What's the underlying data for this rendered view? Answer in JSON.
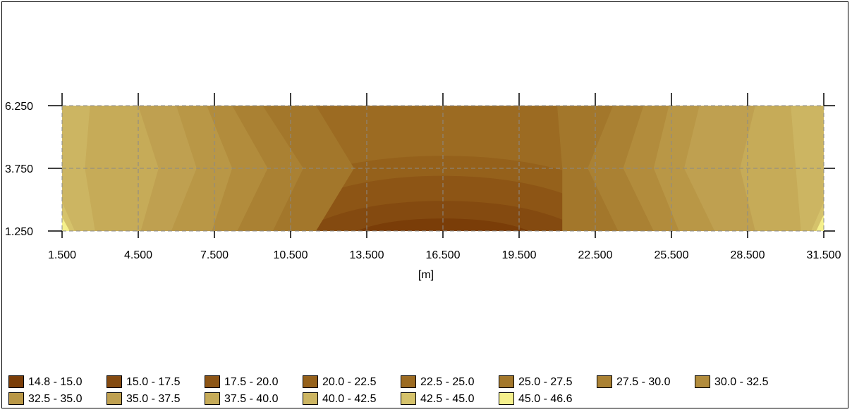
{
  "chart_data": {
    "type": "heatmap",
    "title": "",
    "xlabel": "[m]",
    "ylabel": "",
    "xlim": [
      1.5,
      31.5
    ],
    "ylim": [
      1.25,
      6.25
    ],
    "x_ticks": [
      "1.500",
      "4.500",
      "7.500",
      "10.500",
      "13.500",
      "16.500",
      "19.500",
      "22.500",
      "25.500",
      "28.500",
      "31.500"
    ],
    "y_ticks": [
      "6.250",
      "3.750",
      "1.250"
    ],
    "grid": true,
    "legend": {
      "placement": "bottom",
      "items": [
        {
          "label": "14.8 - 15.0",
          "color": "#7a3d08"
        },
        {
          "label": "15.0 - 17.5",
          "color": "#844a10"
        },
        {
          "label": "17.5 - 20.0",
          "color": "#8d5515"
        },
        {
          "label": "20.0 - 22.5",
          "color": "#95611b"
        },
        {
          "label": "22.5 - 25.0",
          "color": "#9c6b22"
        },
        {
          "label": "25.0 - 27.5",
          "color": "#a3772b"
        },
        {
          "label": "27.5 - 30.0",
          "color": "#aa8133"
        },
        {
          "label": "30.0 - 32.5",
          "color": "#b28c3c"
        },
        {
          "label": "32.5 - 35.0",
          "color": "#b99746"
        },
        {
          "label": "35.0 - 37.5",
          "color": "#bfa050"
        },
        {
          "label": "37.5 - 40.0",
          "color": "#c6ab58"
        },
        {
          "label": "40.0 - 42.5",
          "color": "#ccb562"
        },
        {
          "label": "42.5 - 45.0",
          "color": "#d5c26b"
        },
        {
          "label": "45.0 - 46.6",
          "color": "#f5f08c"
        }
      ]
    },
    "bands": [
      {
        "color": "#c6ab58",
        "points": [
          [
            1.5,
            1.25
          ],
          [
            1.5,
            6.25
          ],
          [
            5.0,
            6.25
          ],
          [
            5.5,
            3.75
          ],
          [
            4.8,
            1.25
          ]
        ]
      },
      {
        "color": "#bfa050",
        "points": [
          [
            4.5,
            6.25
          ],
          [
            6.2,
            6.25
          ],
          [
            7.0,
            3.75
          ],
          [
            6.0,
            1.25
          ],
          [
            4.6,
            1.25
          ],
          [
            5.3,
            3.75
          ]
        ]
      },
      {
        "color": "#b99746",
        "points": [
          [
            6.0,
            6.25
          ],
          [
            7.4,
            6.25
          ],
          [
            8.4,
            3.75
          ],
          [
            7.6,
            1.25
          ],
          [
            5.8,
            1.25
          ],
          [
            6.8,
            3.75
          ]
        ]
      },
      {
        "color": "#b28c3c",
        "points": [
          [
            7.2,
            6.25
          ],
          [
            8.4,
            6.25
          ],
          [
            9.8,
            3.75
          ],
          [
            8.6,
            1.25
          ],
          [
            7.4,
            1.25
          ],
          [
            8.2,
            3.75
          ]
        ]
      },
      {
        "color": "#aa8133",
        "points": [
          [
            8.2,
            6.25
          ],
          [
            9.6,
            6.25
          ],
          [
            11.2,
            3.75
          ],
          [
            10.0,
            1.25
          ],
          [
            8.4,
            1.25
          ],
          [
            9.6,
            3.75
          ]
        ]
      },
      {
        "color": "#a3772b",
        "points": [
          [
            9.4,
            6.25
          ],
          [
            11.5,
            6.25
          ],
          [
            13.0,
            3.75
          ],
          [
            11.5,
            1.25
          ],
          [
            9.8,
            1.25
          ],
          [
            11.0,
            3.75
          ]
        ]
      },
      {
        "color": "#a3772b",
        "points": [
          [
            21.0,
            6.25
          ],
          [
            23.4,
            6.25
          ],
          [
            22.4,
            3.75
          ],
          [
            23.6,
            1.25
          ],
          [
            21.2,
            1.25
          ],
          [
            21.2,
            3.75
          ]
        ]
      },
      {
        "color": "#aa8133",
        "points": [
          [
            23.2,
            6.25
          ],
          [
            24.6,
            6.25
          ],
          [
            23.8,
            3.75
          ],
          [
            25.0,
            1.25
          ],
          [
            23.4,
            1.25
          ],
          [
            22.2,
            3.75
          ]
        ]
      },
      {
        "color": "#b28c3c",
        "points": [
          [
            24.4,
            6.25
          ],
          [
            25.6,
            6.25
          ],
          [
            25.0,
            3.75
          ],
          [
            26.0,
            1.25
          ],
          [
            24.8,
            1.25
          ],
          [
            23.6,
            3.75
          ]
        ]
      },
      {
        "color": "#b99746",
        "points": [
          [
            25.4,
            6.25
          ],
          [
            26.8,
            6.25
          ],
          [
            26.2,
            3.75
          ],
          [
            27.4,
            1.25
          ],
          [
            25.8,
            1.25
          ],
          [
            24.8,
            3.75
          ]
        ]
      },
      {
        "color": "#bfa050",
        "points": [
          [
            26.6,
            6.25
          ],
          [
            29.0,
            6.25
          ],
          [
            28.4,
            3.75
          ],
          [
            29.0,
            1.25
          ],
          [
            27.2,
            1.25
          ],
          [
            26.0,
            3.75
          ]
        ]
      },
      {
        "color": "#c6ab58",
        "points": [
          [
            28.8,
            6.25
          ],
          [
            31.5,
            6.25
          ],
          [
            31.5,
            1.25
          ],
          [
            28.8,
            1.25
          ],
          [
            28.2,
            3.75
          ]
        ]
      },
      {
        "color": "#ccb562",
        "points": [
          [
            30.2,
            6.25
          ],
          [
            31.5,
            6.25
          ],
          [
            31.5,
            1.25
          ],
          [
            30.6,
            1.25
          ],
          [
            30.4,
            3.75
          ]
        ]
      },
      {
        "color": "#ccb562",
        "points": [
          [
            1.5,
            6.25
          ],
          [
            2.6,
            6.25
          ],
          [
            2.4,
            3.75
          ],
          [
            2.8,
            1.25
          ],
          [
            1.5,
            1.25
          ]
        ]
      },
      {
        "color": "#d5c26b",
        "points": [
          [
            1.5,
            2.4
          ],
          [
            2.0,
            1.25
          ],
          [
            1.5,
            1.25
          ]
        ]
      },
      {
        "color": "#d5c26b",
        "points": [
          [
            31.5,
            2.4
          ],
          [
            31.0,
            1.25
          ],
          [
            31.5,
            1.25
          ]
        ]
      },
      {
        "color": "#f5f08c",
        "points": [
          [
            1.5,
            1.8
          ],
          [
            1.8,
            1.25
          ],
          [
            1.5,
            1.25
          ]
        ]
      },
      {
        "color": "#f5f08c",
        "points": [
          [
            31.5,
            1.9
          ],
          [
            31.2,
            1.25
          ],
          [
            31.5,
            1.25
          ]
        ]
      }
    ],
    "arcs": [
      {
        "color": "#95611b",
        "cx": 16.5,
        "halfwidth": 9.2,
        "height": 3.0
      },
      {
        "color": "#8d5515",
        "cx": 16.5,
        "halfwidth": 7.4,
        "height": 2.2
      },
      {
        "color": "#844a10",
        "cx": 16.5,
        "halfwidth": 5.6,
        "height": 1.2
      },
      {
        "color": "#7a3d08",
        "cx": 16.5,
        "halfwidth": 3.4,
        "height": 0.5
      }
    ],
    "base_color": "#9c6b22"
  }
}
